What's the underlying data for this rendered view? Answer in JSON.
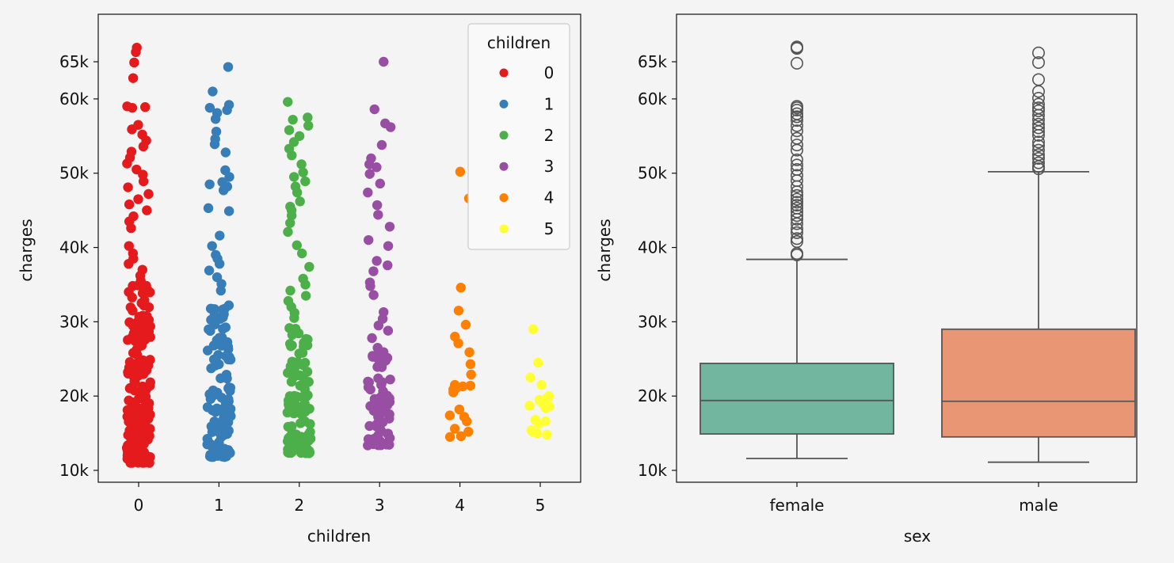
{
  "colors": {
    "background": "#f4f4f4",
    "children_palette": [
      "#e41a1c",
      "#377eb8",
      "#4daf4a",
      "#984ea3",
      "#ff7f00",
      "#ffff33"
    ],
    "female_box": "#73b6a0",
    "male_box": "#e99675",
    "box_line": "#555555"
  },
  "chart_data": [
    {
      "type": "scatter",
      "subtype": "strip",
      "xlabel": "children",
      "ylabel": "charges",
      "categories": [
        "0",
        "1",
        "2",
        "3",
        "4",
        "5"
      ],
      "ylim": [
        8000,
        68500
      ],
      "y_ticks": [
        10000,
        20000,
        30000,
        40000,
        50000,
        60000,
        65000
      ],
      "y_tick_labels": [
        "10k",
        "20k",
        "30k",
        "40k",
        "50k",
        "60k",
        "65k"
      ],
      "legend": {
        "title": "children",
        "entries": [
          "0",
          "1",
          "2",
          "3",
          "4",
          "5"
        ],
        "placement": "top-right"
      },
      "series": [
        {
          "name": "0",
          "min": 11000,
          "max": 35000,
          "count": 180,
          "extra_points": [
            35500,
            36200,
            37000,
            37800,
            38500,
            39200,
            40200,
            42600,
            43500,
            44200,
            45000,
            45800,
            46500,
            47200,
            48100,
            48900,
            49800,
            50500,
            51300,
            52100,
            52900,
            53600,
            54400,
            55200,
            55900,
            56500,
            58800,
            58900,
            59000,
            62800,
            64900,
            66300,
            66900
          ]
        },
        {
          "name": "1",
          "min": 11800,
          "max": 33000,
          "count": 120,
          "extra_points": [
            34200,
            35100,
            36000,
            36900,
            37800,
            38500,
            39000,
            40200,
            41600,
            44900,
            45300,
            47700,
            48200,
            48500,
            48800,
            49500,
            50400,
            52800,
            53900,
            54600,
            55600,
            57300,
            58100,
            58500,
            58800,
            59200,
            61000,
            64300
          ]
        },
        {
          "name": "2",
          "min": 12300,
          "max": 30000,
          "count": 100,
          "extra_points": [
            30500,
            31200,
            32000,
            32800,
            33500,
            34200,
            35000,
            35800,
            37400,
            39200,
            40300,
            42100,
            43300,
            44300,
            45000,
            45500,
            46200,
            47400,
            48200,
            48900,
            49500,
            50100,
            51200,
            52400,
            53300,
            54200,
            55000,
            55800,
            56400,
            57200,
            57500,
            59600
          ]
        },
        {
          "name": "3",
          "min": 13300,
          "max": 26000,
          "count": 70,
          "extra_points": [
            26500,
            27800,
            28800,
            29500,
            30400,
            31300,
            33600,
            34800,
            35300,
            36800,
            37600,
            38200,
            40200,
            41000,
            42800,
            44400,
            45700,
            47400,
            48600,
            49900,
            50800,
            51200,
            52000,
            53800,
            56200,
            56700,
            58600,
            65000
          ]
        },
        {
          "name": "4",
          "min": 14500,
          "max": 22000,
          "count": 0,
          "extra_points": [
            14500,
            14600,
            15200,
            15600,
            16600,
            17200,
            17400,
            18200,
            20500,
            20700,
            20900,
            21100,
            21300,
            21400,
            21500,
            22900,
            24300,
            25900,
            27100,
            28000,
            29600,
            31500,
            34600,
            46600,
            50200
          ]
        },
        {
          "name": "5",
          "min": 14800,
          "max": 20000,
          "count": 0,
          "extra_points": [
            14800,
            15000,
            15200,
            15400,
            16300,
            16600,
            16800,
            18400,
            18600,
            18700,
            19000,
            19500,
            19800,
            20000,
            21500,
            22500,
            24500,
            29000
          ]
        }
      ]
    },
    {
      "type": "box",
      "xlabel": "sex",
      "ylabel": "charges",
      "categories": [
        "female",
        "male"
      ],
      "ylim": [
        8000,
        68500
      ],
      "y_ticks": [
        10000,
        20000,
        30000,
        40000,
        50000,
        60000,
        65000
      ],
      "y_tick_labels": [
        "10k",
        "20k",
        "30k",
        "40k",
        "50k",
        "60k",
        "65k"
      ],
      "boxes": [
        {
          "name": "female",
          "whisker_low": 11600,
          "q1": 14900,
          "median": 19400,
          "q3": 24400,
          "whisker_high": 38400,
          "outliers": [
            39000,
            39200,
            40800,
            41200,
            42000,
            42500,
            43200,
            43800,
            44300,
            44800,
            45300,
            45700,
            46100,
            46500,
            47000,
            47500,
            48200,
            49000,
            49700,
            50500,
            51100,
            51800,
            53100,
            53800,
            54700,
            55700,
            56400,
            57100,
            57600,
            58000,
            58500,
            58800,
            59000,
            64800,
            66800,
            66900,
            67000
          ]
        },
        {
          "name": "male",
          "whisker_low": 11100,
          "q1": 14500,
          "median": 19300,
          "q3": 29000,
          "whisker_high": 50200,
          "outliers": [
            50600,
            50900,
            51400,
            52000,
            52500,
            53100,
            53700,
            54200,
            55100,
            55600,
            56100,
            56600,
            57200,
            57800,
            58400,
            58800,
            59300,
            60100,
            61000,
            62600,
            64900,
            66200
          ]
        }
      ]
    }
  ]
}
